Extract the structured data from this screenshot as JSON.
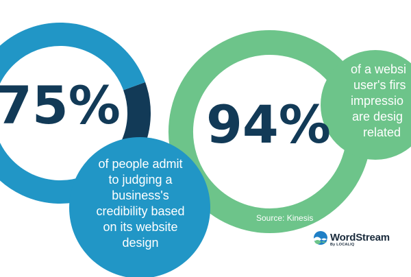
{
  "chart_data": [
    {
      "type": "pie",
      "value": 75,
      "remainder": 25,
      "label": "75%",
      "caption_lines": [
        "of people admit",
        "to judging a",
        "business's",
        "credibility based",
        "on its website",
        "design"
      ],
      "colors": {
        "value": "#2196c6",
        "remainder": "#123a57"
      }
    },
    {
      "type": "pie",
      "value": 94,
      "remainder": 6,
      "label": "94%",
      "caption_lines": [
        "of a websi",
        "user's firs",
        "impressio",
        "are desig",
        "related"
      ],
      "colors": {
        "value": "#6dc48a",
        "remainder": "#123a57"
      }
    }
  ],
  "source": "Source: Kinesis",
  "logo": {
    "name": "WordStream",
    "sub": "By LOCALIQ",
    "icon": "wordstream-wave-icon"
  },
  "colors": {
    "text_dark": "#123a57",
    "bubble_blue": "#2196c6",
    "bubble_green": "#6dc48a"
  }
}
